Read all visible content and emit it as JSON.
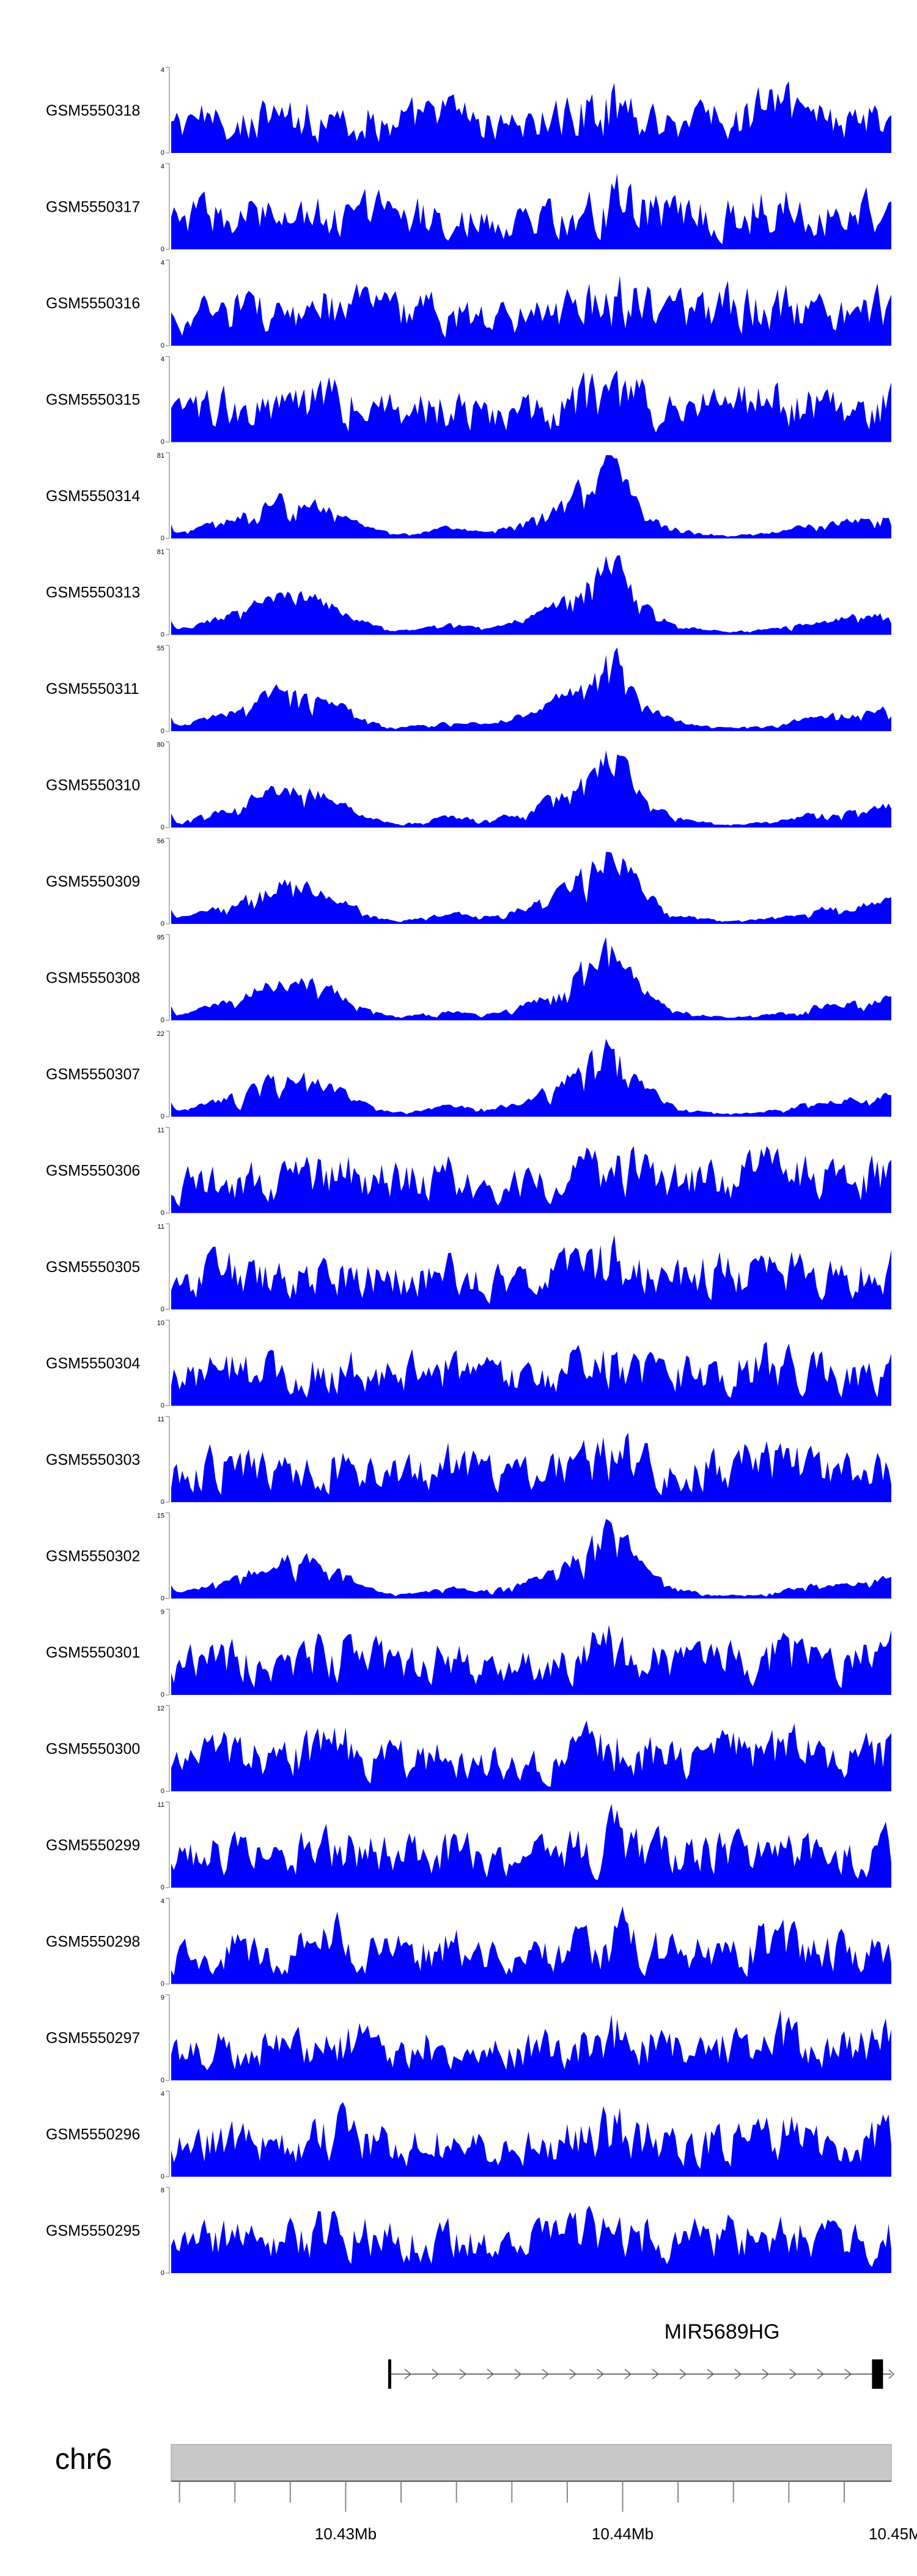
{
  "track_color": "#0000ff",
  "axis_color": "#888888",
  "ideogram_color": "#c8c8c8",
  "chart_data": {
    "type": "area",
    "xlabel": "",
    "ylabel": "",
    "xlim": [
      10.4237,
      10.4497
    ],
    "x_unit": "Mb",
    "x_ticks": [
      {
        "value": 10.43,
        "label": "10.43Mb"
      },
      {
        "value": 10.44,
        "label": "10.44Mb"
      },
      {
        "value": 10.45,
        "label": "10.45Mb"
      }
    ],
    "chromosome": "chr6",
    "gene": {
      "name": "MIR5689HG",
      "start": 10.4316,
      "end": 10.4494,
      "strand": "+"
    },
    "shape_templates": [
      {
        "x": [
          10.4237,
          10.4247,
          10.4257,
          10.4267,
          10.4277,
          10.4287,
          10.4297,
          10.4307,
          10.4317,
          10.4327,
          10.4337,
          10.4347,
          10.4357,
          10.4367,
          10.4377,
          10.4387,
          10.4397,
          10.4407,
          10.4417,
          10.4427,
          10.4437,
          10.4447,
          10.4457,
          10.4467,
          10.4477,
          10.4487,
          10.4497
        ],
        "y": [
          0.05,
          0.15,
          0.25,
          0.4,
          0.55,
          0.5,
          0.35,
          0.15,
          0.05,
          0.08,
          0.15,
          0.1,
          0.15,
          0.25,
          0.45,
          0.75,
          1.0,
          0.4,
          0.15,
          0.08,
          0.04,
          0.06,
          0.1,
          0.18,
          0.22,
          0.25,
          0.3
        ]
      },
      {
        "x": [
          10.4237,
          10.4257,
          10.4277,
          10.4297,
          10.4317,
          10.4337,
          10.4357,
          10.4377,
          10.4397,
          10.4417,
          10.4437,
          10.4457,
          10.4477,
          10.4497
        ],
        "y": [
          0.5,
          0.7,
          0.6,
          0.8,
          0.6,
          0.7,
          0.5,
          0.65,
          0.9,
          0.6,
          0.7,
          0.8,
          0.6,
          0.75
        ]
      }
    ],
    "tracks": [
      {
        "name": "GSM5550318",
        "ymax": 4,
        "tmpl": 1
      },
      {
        "name": "GSM5550317",
        "ymax": 4,
        "tmpl": 1
      },
      {
        "name": "GSM5550316",
        "ymax": 4,
        "tmpl": 1
      },
      {
        "name": "GSM5550315",
        "ymax": 4,
        "tmpl": 1
      },
      {
        "name": "GSM5550314",
        "ymax": 81,
        "tmpl": 0
      },
      {
        "name": "GSM5550313",
        "ymax": 81,
        "tmpl": 0
      },
      {
        "name": "GSM5550311",
        "ymax": 55,
        "tmpl": 0
      },
      {
        "name": "GSM5550310",
        "ymax": 80,
        "tmpl": 0
      },
      {
        "name": "GSM5550309",
        "ymax": 56,
        "tmpl": 0
      },
      {
        "name": "GSM5550308",
        "ymax": 95,
        "tmpl": 0
      },
      {
        "name": "GSM5550307",
        "ymax": 22,
        "tmpl": 0
      },
      {
        "name": "GSM5550306",
        "ymax": 11,
        "tmpl": 1
      },
      {
        "name": "GSM5550305",
        "ymax": 11,
        "tmpl": 1
      },
      {
        "name": "GSM5550304",
        "ymax": 10,
        "tmpl": 1
      },
      {
        "name": "GSM5550303",
        "ymax": 11,
        "tmpl": 1
      },
      {
        "name": "GSM5550302",
        "ymax": 15,
        "tmpl": 0
      },
      {
        "name": "GSM5550301",
        "ymax": 9,
        "tmpl": 1
      },
      {
        "name": "GSM5550300",
        "ymax": 12,
        "tmpl": 1
      },
      {
        "name": "GSM5550299",
        "ymax": 11,
        "tmpl": 1
      },
      {
        "name": "GSM5550298",
        "ymax": 4,
        "tmpl": 1
      },
      {
        "name": "GSM5550297",
        "ymax": 9,
        "tmpl": 1
      },
      {
        "name": "GSM5550296",
        "ymax": 4,
        "tmpl": 1
      },
      {
        "name": "GSM5550295",
        "ymax": 8,
        "tmpl": 1
      }
    ]
  }
}
